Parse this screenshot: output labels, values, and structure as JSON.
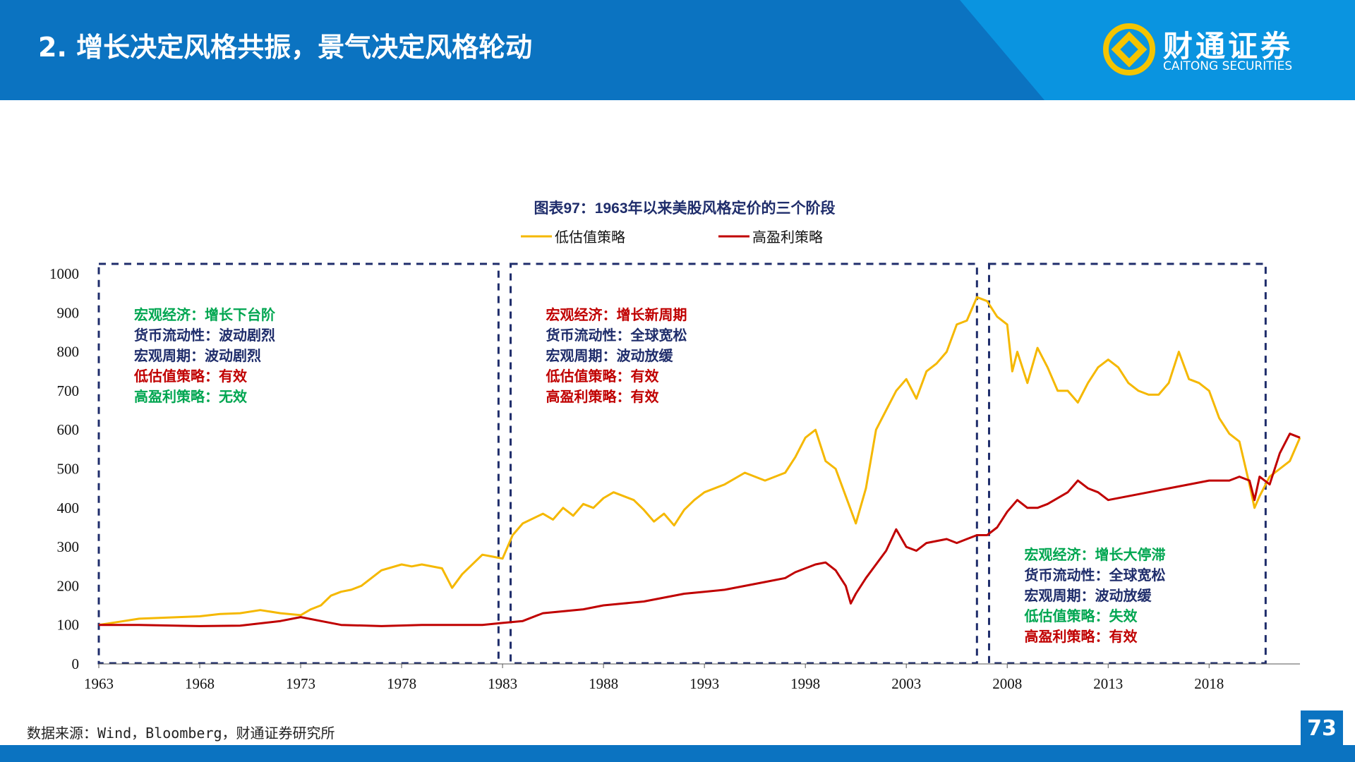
{
  "header": {
    "title": "2. 增长决定风格共振，景气决定风格轮动"
  },
  "brand": {
    "name_cn": "财通证券",
    "name_en": "CAITONG SECURITIES"
  },
  "footer": {
    "source": "数据来源：Wind，Bloomberg，财通证券研究所",
    "page": "73"
  },
  "colors": {
    "header": "#0b73c1",
    "header_light": "#0a94e0",
    "low_value": "#f5b800",
    "high_profit": "#c00000",
    "green": "#00a651",
    "red": "#c00000",
    "navy": "#1f2d6b"
  },
  "chart_data": {
    "type": "line",
    "title": "图表97：1963年以来美股风格定价的三个阶段",
    "ylim": [
      0,
      1000
    ],
    "yticks": [
      0,
      100,
      200,
      300,
      400,
      500,
      600,
      700,
      800,
      900,
      1000
    ],
    "xlim": [
      1963,
      2022.5
    ],
    "xticks": [
      1963,
      1968,
      1973,
      1978,
      1983,
      1988,
      1993,
      1998,
      2003,
      2008,
      2013,
      2018
    ],
    "legend_position": "top-center",
    "series": [
      {
        "name": "低估值策略",
        "color": "#f5b800",
        "x": [
          1963,
          1964,
          1965,
          1966,
          1967,
          1968,
          1969,
          1970,
          1971,
          1972,
          1973,
          1973.5,
          1974,
          1974.5,
          1975,
          1975.5,
          1976,
          1977,
          1978,
          1978.5,
          1979,
          1980,
          1980.5,
          1981,
          1982,
          1982.5,
          1983,
          1983.5,
          1984,
          1985,
          1985.5,
          1986,
          1986.5,
          1987,
          1987.5,
          1988,
          1988.5,
          1989,
          1989.5,
          1990,
          1990.5,
          1991,
          1991.5,
          1992,
          1992.5,
          1993,
          1994,
          1995,
          1996,
          1997,
          1997.5,
          1998,
          1998.5,
          1999,
          1999.5,
          2000,
          2000.5,
          2001,
          2001.5,
          2002,
          2002.5,
          2003,
          2003.5,
          2004,
          2004.5,
          2005,
          2005.5,
          2006,
          2006.5,
          2007,
          2007.5,
          2008,
          2008.25,
          2008.5,
          2009,
          2009.5,
          2010,
          2010.5,
          2011,
          2011.5,
          2012,
          2012.5,
          2013,
          2013.5,
          2014,
          2014.5,
          2015,
          2015.5,
          2016,
          2016.5,
          2017,
          2017.5,
          2018,
          2018.5,
          2019,
          2019.5,
          2020,
          2020.25,
          2020.5,
          2021,
          2021.5,
          2022,
          2022.5
        ],
        "values": [
          100,
          108,
          116,
          118,
          120,
          122,
          128,
          130,
          138,
          130,
          125,
          140,
          150,
          175,
          185,
          190,
          200,
          240,
          255,
          250,
          255,
          245,
          195,
          230,
          280,
          275,
          270,
          330,
          360,
          385,
          370,
          400,
          380,
          410,
          400,
          425,
          440,
          430,
          420,
          395,
          365,
          385,
          355,
          395,
          420,
          440,
          460,
          490,
          470,
          490,
          530,
          580,
          600,
          520,
          500,
          430,
          360,
          450,
          600,
          650,
          700,
          730,
          680,
          750,
          770,
          800,
          870,
          880,
          940,
          930,
          890,
          870,
          750,
          800,
          720,
          810,
          760,
          700,
          700,
          670,
          720,
          760,
          780,
          760,
          720,
          700,
          690,
          690,
          720,
          800,
          730,
          720,
          700,
          630,
          590,
          570,
          460,
          400,
          430,
          480,
          500,
          520,
          580
        ]
      },
      {
        "name": "高盈利策略",
        "color": "#c00000",
        "x": [
          1963,
          1965,
          1968,
          1970,
          1972,
          1973,
          1974,
          1975,
          1977,
          1979,
          1981,
          1982,
          1983,
          1984,
          1985,
          1987,
          1988,
          1989,
          1990,
          1991,
          1992,
          1993,
          1994,
          1995,
          1996,
          1997,
          1997.5,
          1998,
          1998.5,
          1999,
          1999.5,
          2000,
          2000.25,
          2000.5,
          2001,
          2002,
          2002.5,
          2003,
          2003.5,
          2004,
          2005,
          2005.5,
          2006,
          2006.5,
          2007,
          2007.5,
          2008,
          2008.5,
          2009,
          2009.5,
          2010,
          2011,
          2011.5,
          2012,
          2012.5,
          2013,
          2014,
          2015,
          2016,
          2017,
          2018,
          2019,
          2019.5,
          2020,
          2020.25,
          2020.5,
          2021,
          2021.5,
          2022,
          2022.5
        ],
        "values": [
          100,
          100,
          97,
          98,
          110,
          120,
          110,
          100,
          97,
          100,
          100,
          100,
          105,
          110,
          130,
          140,
          150,
          155,
          160,
          170,
          180,
          185,
          190,
          200,
          210,
          220,
          235,
          245,
          255,
          260,
          240,
          200,
          155,
          180,
          220,
          290,
          345,
          300,
          290,
          310,
          320,
          310,
          320,
          330,
          330,
          350,
          390,
          420,
          400,
          400,
          410,
          440,
          470,
          450,
          440,
          420,
          430,
          440,
          450,
          460,
          470,
          470,
          480,
          470,
          420,
          480,
          460,
          540,
          590,
          580
        ]
      }
    ],
    "boxes": [
      {
        "x0": 1963,
        "x1": 1982.8,
        "lines": [
          {
            "text": "宏观经济：增长下台阶",
            "color": "#00a651"
          },
          {
            "text": "货币流动性：波动剧烈",
            "color": "#1f2d6b"
          },
          {
            "text": "宏观周期：波动剧烈",
            "color": "#1f2d6b"
          },
          {
            "text": "低估值策略：有效",
            "color": "#c00000"
          },
          {
            "text": "高盈利策略：无效",
            "color": "#00a651"
          }
        ]
      },
      {
        "x0": 1983.4,
        "x1": 2006.5,
        "lines": [
          {
            "text": "宏观经济：增长新周期",
            "color": "#c00000"
          },
          {
            "text": "货币流动性：全球宽松",
            "color": "#1f2d6b"
          },
          {
            "text": "宏观周期：波动放缓",
            "color": "#1f2d6b"
          },
          {
            "text": "低估值策略：有效",
            "color": "#c00000"
          },
          {
            "text": "高盈利策略：有效",
            "color": "#c00000"
          }
        ]
      },
      {
        "x0": 2007.1,
        "x1": 2020.8,
        "lines": [
          {
            "text": "宏观经济：增长大停滞",
            "color": "#00a651"
          },
          {
            "text": "货币流动性：全球宽松",
            "color": "#1f2d6b"
          },
          {
            "text": "宏观周期：波动放缓",
            "color": "#1f2d6b"
          },
          {
            "text": "低估值策略：失效",
            "color": "#00a651"
          },
          {
            "text": "高盈利策略：有效",
            "color": "#c00000"
          }
        ]
      }
    ]
  }
}
